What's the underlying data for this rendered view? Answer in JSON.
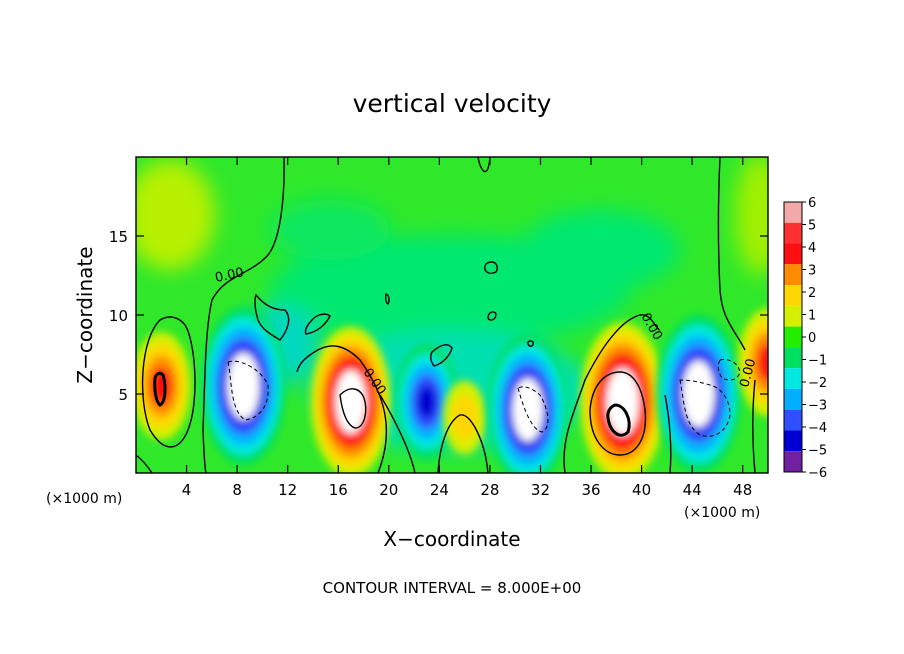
{
  "chart_data": {
    "type": "heatmap",
    "title": "vertical velocity",
    "xlabel": "X−coordinate",
    "ylabel": "Z−coordinate",
    "x_unit": "(×1000 m)",
    "y_unit": "(×1000 m)",
    "xlim": [
      0,
      50
    ],
    "ylim": [
      0,
      20
    ],
    "x_ticks": [
      4,
      8,
      12,
      16,
      20,
      24,
      28,
      32,
      36,
      40,
      44,
      48
    ],
    "y_ticks": [
      5,
      10,
      15
    ],
    "x_tick_labels": [
      "4",
      "8",
      "12",
      "16",
      "20",
      "24",
      "28",
      "32",
      "36",
      "40",
      "44",
      "48"
    ],
    "y_tick_labels": [
      "5",
      "10",
      "15"
    ],
    "colorbar": {
      "levels": [
        6,
        5,
        4,
        3,
        2,
        1,
        0,
        -1,
        -2,
        -3,
        -4,
        -5,
        -6
      ],
      "labels": [
        "6",
        "5",
        "4",
        "3",
        "2",
        "1",
        "0",
        "−1",
        "−2",
        "−3",
        "−4",
        "−5",
        "−6"
      ],
      "colors": [
        "#f4a9a9",
        "#ff3030",
        "#ff1010",
        "#ff8c00",
        "#ffd700",
        "#d4f000",
        "#22ee00",
        "#00e060",
        "#00e8e0",
        "#00b0ff",
        "#3050ff",
        "#0000d0",
        "#7020a0"
      ]
    },
    "features": [
      {
        "x": 2.0,
        "z": 5.5,
        "w": 4.0
      },
      {
        "x": 8.5,
        "z": 5.5,
        "w": -7.0
      },
      {
        "x": 17.0,
        "z": 4.5,
        "w": 6.5
      },
      {
        "x": 23.0,
        "z": 4.5,
        "w": -4.5
      },
      {
        "x": 26.0,
        "z": 3.5,
        "w": 2.0
      },
      {
        "x": 31.0,
        "z": 4.0,
        "w": -6.5
      },
      {
        "x": 38.5,
        "z": 4.5,
        "w": 7.0
      },
      {
        "x": 44.5,
        "z": 5.0,
        "w": -7.0
      },
      {
        "x": 50.0,
        "z": 7.0,
        "w": 4.0
      }
    ],
    "contour_labels": [
      "0.00",
      "0.00",
      "0.00",
      "0.00"
    ],
    "annotation": "CONTOUR INTERVAL = 8.000E+00"
  }
}
